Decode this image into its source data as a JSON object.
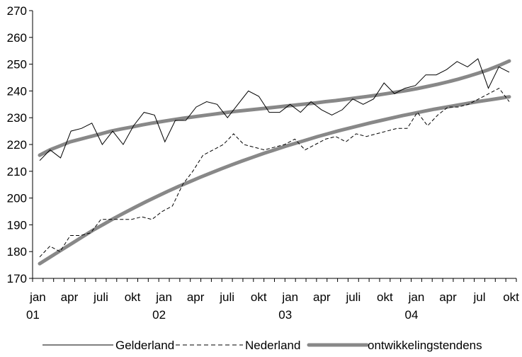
{
  "chart_data": {
    "type": "line",
    "y_axis": {
      "min": 170,
      "max": 270,
      "step": 10,
      "ticks": [
        "170",
        "180",
        "190",
        "200",
        "210",
        "220",
        "230",
        "240",
        "250",
        "260",
        "270"
      ]
    },
    "x_axis": {
      "tick_labels": [
        {
          "line1": "jan",
          "line2": "01"
        },
        {
          "line1": "apr",
          "line2": ""
        },
        {
          "line1": "juli",
          "line2": ""
        },
        {
          "line1": "okt",
          "line2": ""
        },
        {
          "line1": "jan",
          "line2": "02"
        },
        {
          "line1": "apr",
          "line2": ""
        },
        {
          "line1": "juli",
          "line2": ""
        },
        {
          "line1": "okt",
          "line2": ""
        },
        {
          "line1": "jan",
          "line2": "03"
        },
        {
          "line1": "apr",
          "line2": ""
        },
        {
          "line1": "juli",
          "line2": ""
        },
        {
          "line1": "okt",
          "line2": ""
        },
        {
          "line1": "jan",
          "line2": "04"
        },
        {
          "line1": "apr",
          "line2": ""
        },
        {
          "line1": "jul",
          "line2": ""
        },
        {
          "line1": "okt",
          "line2": ""
        }
      ]
    },
    "series": [
      {
        "name": "Gelderland",
        "style": "thin-solid",
        "color": "#000000",
        "values": [
          214,
          218,
          215,
          225,
          226,
          228,
          220,
          225,
          220,
          227,
          232,
          231,
          221,
          229,
          229,
          234,
          236,
          235,
          230,
          235,
          240,
          238,
          232,
          232,
          235,
          232,
          236,
          233,
          231,
          233,
          237,
          235,
          237,
          243,
          239,
          241,
          242,
          246,
          246,
          248,
          251,
          249,
          252,
          241,
          249,
          247
        ]
      },
      {
        "name": "Nederland",
        "style": "thin-dashed",
        "color": "#000000",
        "values": [
          178,
          182,
          180,
          186,
          186,
          187,
          192,
          192,
          192,
          192,
          193,
          192,
          195,
          197,
          205,
          210,
          216,
          218,
          220,
          224,
          220,
          219,
          218,
          219,
          220,
          222,
          218,
          220,
          222,
          223,
          221,
          224,
          223,
          224,
          225,
          226,
          226,
          232,
          227,
          231,
          234,
          234,
          235,
          237,
          239,
          241,
          236
        ]
      },
      {
        "name": "ontwikkelingstendens",
        "style": "thick-gray",
        "color": "#888888",
        "trend_upper": [
          216,
          218,
          219.5,
          221,
          222,
          223,
          224,
          225,
          225.8,
          226.5,
          227.3,
          228,
          228.6,
          229.2,
          229.8,
          230.3,
          230.8,
          231.3,
          231.8,
          232.3,
          232.7,
          233.1,
          233.5,
          233.9,
          234.3,
          234.7,
          235.1,
          235.5,
          236,
          236.4,
          236.9,
          237.4,
          237.9,
          238.4,
          239,
          239.6,
          240.2,
          240.9,
          241.7,
          242.5,
          243.4,
          244.4,
          245.5,
          246.7,
          248,
          249.5,
          251.2
        ],
        "trend_lower": [
          175.5,
          178,
          180.5,
          183,
          185.5,
          188,
          190.2,
          192.5,
          194.6,
          196.7,
          198.7,
          200.6,
          202.5,
          204.3,
          206,
          207.7,
          209.3,
          210.9,
          212.4,
          213.9,
          215.3,
          216.7,
          218,
          219.3,
          220.5,
          221.7,
          222.9,
          224,
          225.1,
          226.1,
          227.1,
          228.1,
          229,
          229.9,
          230.8,
          231.6,
          232.4,
          233.2,
          233.9,
          234.6,
          235.3,
          236,
          236.6,
          237.2,
          237.8
        ]
      }
    ],
    "legend": {
      "position": "bottom",
      "items": [
        {
          "label": "Gelderland",
          "style": "thin-solid"
        },
        {
          "label": "Nederland",
          "style": "thin-dashed"
        },
        {
          "label": "ontwikkelingstendens",
          "style": "thick-gray"
        }
      ]
    },
    "grid": false
  }
}
